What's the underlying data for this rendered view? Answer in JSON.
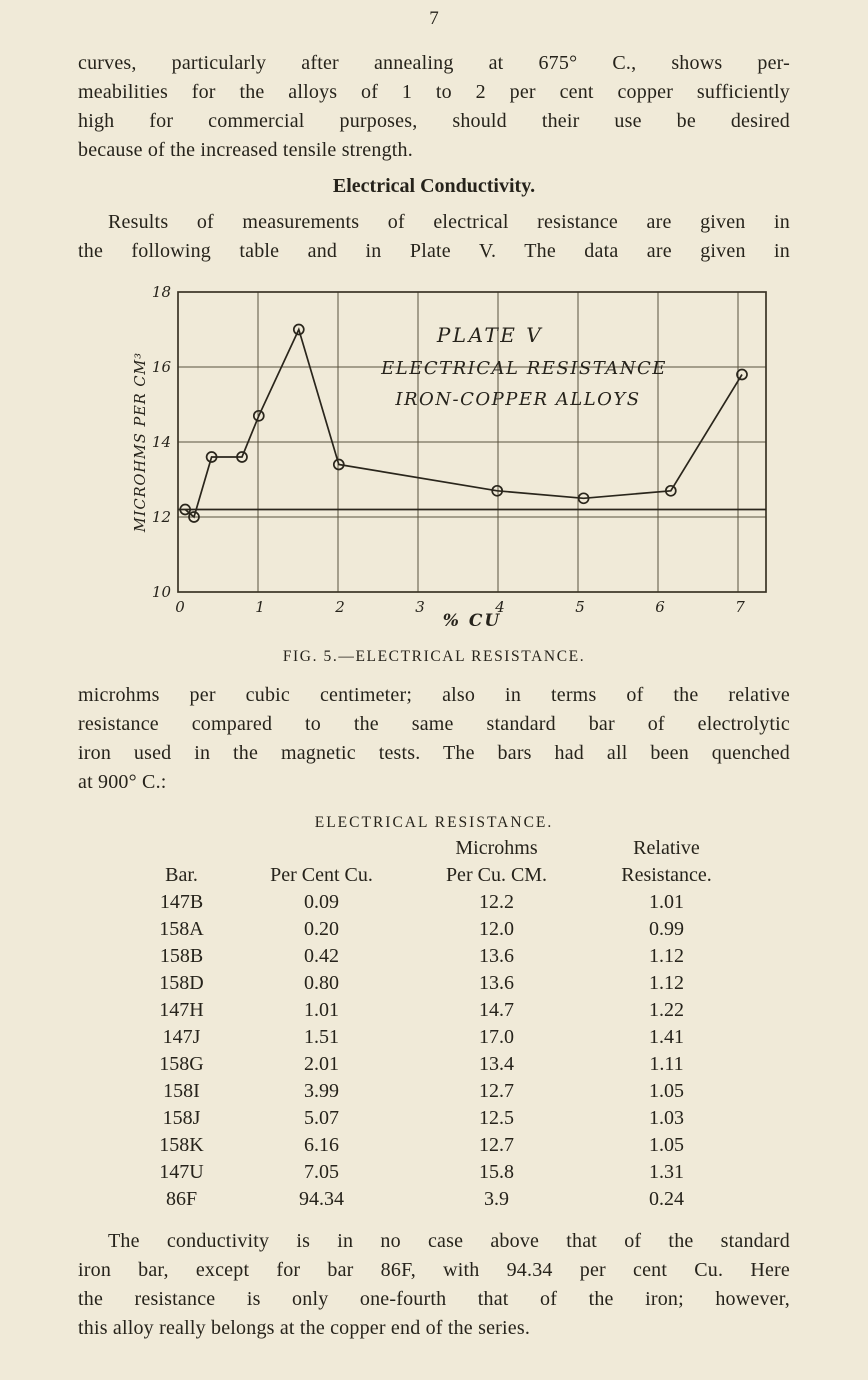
{
  "page": {
    "number": "7",
    "colors": {
      "paper": "#f0ead8",
      "ink": "#26231b"
    }
  },
  "paragraphs": {
    "p1_lines": [
      "curves, particularly after annealing at 675° C., shows per-",
      "meabilities for the alloys of 1 to 2 per cent copper sufficiently",
      "high for commercial purposes, should their use be desired",
      "because of the increased tensile strength."
    ],
    "heading": "Electrical Conductivity.",
    "p2_lines": [
      "Results of measurements of electrical resistance are given in",
      "the following table and in Plate V.  The data are given in"
    ],
    "p3_lines": [
      "microhms per cubic centimeter; also in terms of the relative",
      "resistance compared to the same standard bar of electrolytic",
      "iron used in the magnetic tests.  The bars had all been quenched",
      "at 900° C.:"
    ],
    "p4_lines": [
      "The conductivity is in no case above that of the standard",
      "iron bar, except for bar 86F, with 94.34 per cent Cu.  Here",
      "the resistance is only one-fourth that of the iron; however,",
      "this alloy really belongs at the copper end of the series."
    ]
  },
  "figure": {
    "caption": "FIG. 5.—ELECTRICAL RESISTANCE."
  },
  "chart_data": {
    "type": "line",
    "plate_title": "PLATE V",
    "plate_line2": "ELECTRICAL RESISTANCE",
    "plate_line3": "IRON-COPPER ALLOYS",
    "xlabel": "% CU",
    "ylabel": "MICROHMS PER CM³",
    "xlim": [
      0,
      7.35
    ],
    "ylim": [
      10,
      18
    ],
    "x_ticks": [
      0,
      1,
      2,
      3,
      4,
      5,
      6,
      7
    ],
    "y_ticks": [
      10,
      12,
      14,
      16,
      18
    ],
    "reference_line_y": 12.2,
    "grid": true,
    "legend": false,
    "series": [
      {
        "name": "electrical resistance of iron-copper alloys",
        "x": [
          0.09,
          0.2,
          0.42,
          0.8,
          1.01,
          1.51,
          2.01,
          3.99,
          5.07,
          6.16,
          7.05
        ],
        "y": [
          12.2,
          12.0,
          13.6,
          13.6,
          14.7,
          17.0,
          13.4,
          12.7,
          12.5,
          12.7,
          15.8
        ]
      }
    ]
  },
  "table": {
    "title": "ELECTRICAL RESISTANCE.",
    "header_top": [
      "",
      "",
      "Microhms",
      "Relative"
    ],
    "header_bottom": [
      "Bar.",
      "Per Cent Cu.",
      "Per Cu. CM.",
      "Resistance."
    ],
    "rows": [
      [
        "147B",
        "0.09",
        "12.2",
        "1.01"
      ],
      [
        "158A",
        "0.20",
        "12.0",
        "0.99"
      ],
      [
        "158B",
        "0.42",
        "13.6",
        "1.12"
      ],
      [
        "158D",
        "0.80",
        "13.6",
        "1.12"
      ],
      [
        "147H",
        "1.01",
        "14.7",
        "1.22"
      ],
      [
        "147J",
        "1.51",
        "17.0",
        "1.41"
      ],
      [
        "158G",
        "2.01",
        "13.4",
        "1.11"
      ],
      [
        "158I",
        "3.99",
        "12.7",
        "1.05"
      ],
      [
        "158J",
        "5.07",
        "12.5",
        "1.03"
      ],
      [
        "158K",
        "6.16",
        "12.7",
        "1.05"
      ],
      [
        "147U",
        "7.05",
        "15.8",
        "1.31"
      ],
      [
        "86F",
        "94.34",
        "3.9",
        "0.24"
      ]
    ]
  }
}
